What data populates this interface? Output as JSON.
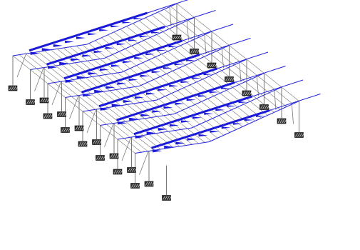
{
  "colors": {
    "background": "#ffffff",
    "structure": "#777777",
    "load_line": "#2222dd",
    "load_arrow": "#1a1ad8",
    "support_fill": "#333333",
    "support_hatch": "#ffffff"
  },
  "model": {
    "frame_count": 8,
    "bay_count": 7,
    "supports_per_frame": 3,
    "load_direction": "wind-along-ridge"
  }
}
